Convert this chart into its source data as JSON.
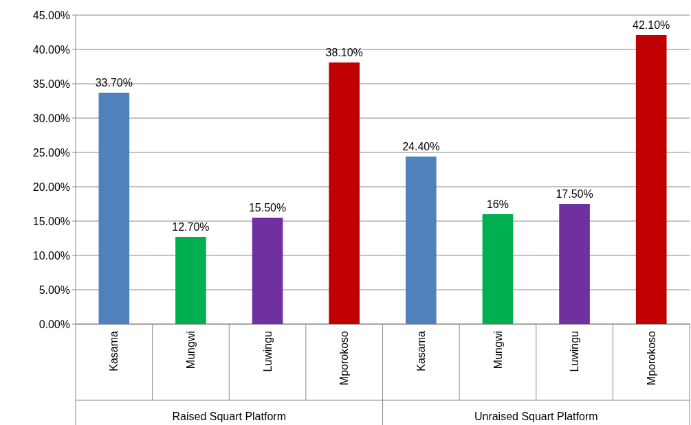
{
  "chart_data": {
    "type": "bar",
    "categories": [
      "Kasama",
      "Mungwi",
      "Luwingu",
      "Mporokoso",
      "Kasama",
      "Mungwi",
      "Luwingu",
      "Mporokoso"
    ],
    "values": [
      33.7,
      12.7,
      15.5,
      38.1,
      24.4,
      16,
      17.5,
      42.1
    ],
    "colors": [
      "#4f81bd",
      "#00b050",
      "#7030a0",
      "#c00000",
      "#4f81bd",
      "#00b050",
      "#7030a0",
      "#c00000"
    ],
    "value_labels": [
      "33.70%",
      "12.70%",
      "15.50%",
      "38.10%",
      "24.40%",
      "16%",
      "17.50%",
      "42.10%"
    ],
    "ylim": [
      0,
      45
    ],
    "yticks": [
      {
        "value": 0,
        "label": "0.00%"
      },
      {
        "value": 5,
        "label": "5.00%"
      },
      {
        "value": 10,
        "label": "10.00%"
      },
      {
        "value": 15,
        "label": "15.00%"
      },
      {
        "value": 20,
        "label": "20.00%"
      },
      {
        "value": 25,
        "label": "25.00%"
      },
      {
        "value": 30,
        "label": "30.00%"
      },
      {
        "value": 35,
        "label": "35.00%"
      },
      {
        "value": 40,
        "label": "40.00%"
      },
      {
        "value": 45,
        "label": "45.00%"
      }
    ],
    "annotations": [
      "Raised Squart Platform",
      "Unraised Squart Platform"
    ],
    "grid": "y"
  }
}
